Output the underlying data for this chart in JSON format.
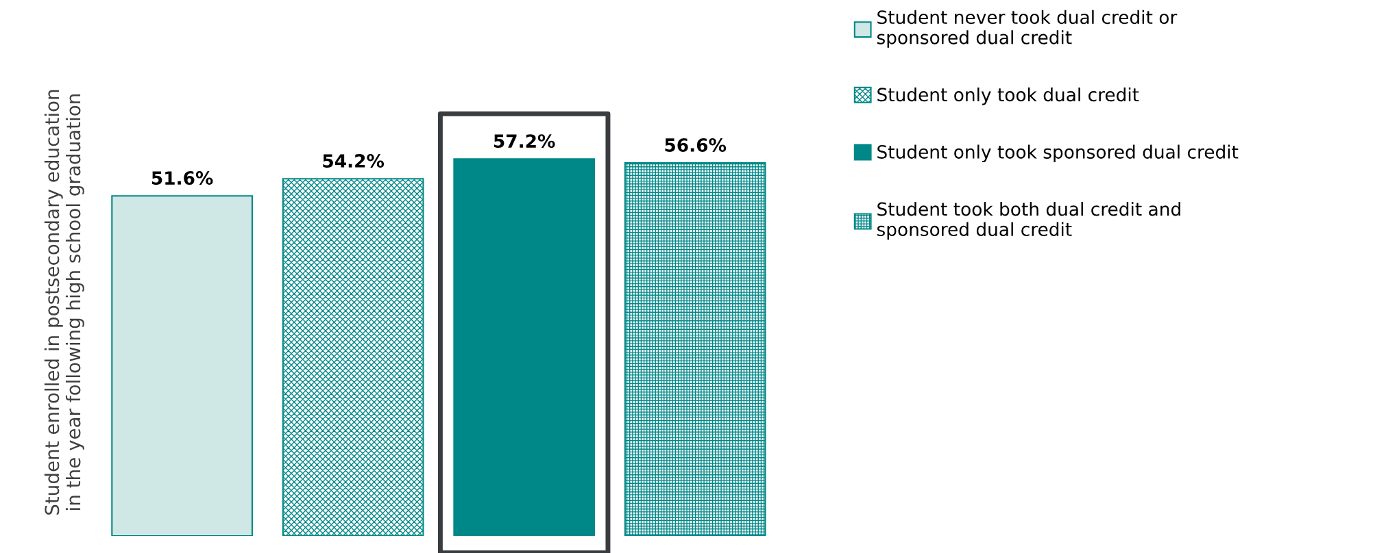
{
  "chart_data": {
    "type": "bar",
    "ylabel": "Student enrolled in postsecondary education\nin the year following high school graduation",
    "categories": [
      null
    ],
    "series": [
      {
        "name": "Student never took dual credit or\nsponsored dual credit",
        "color": "#cfe8e5",
        "values": [
          51.6
        ],
        "value_labels": [
          "51.6%"
        ]
      },
      {
        "name": "Student only took dual credit",
        "color": "#008787",
        "values": [
          54.2
        ],
        "value_labels": [
          "54.2%"
        ]
      },
      {
        "name": "Student only took sponsored dual credit",
        "color": "#008787",
        "values": [
          57.2
        ],
        "value_labels": [
          "57.2%"
        ]
      },
      {
        "name": "Student took both dual credit and\nsponsored dual credit",
        "color": "#008787",
        "values": [
          56.6
        ],
        "value_labels": [
          "56.6%"
        ]
      }
    ],
    "relative": false,
    "grid": false,
    "legend": "right"
  }
}
